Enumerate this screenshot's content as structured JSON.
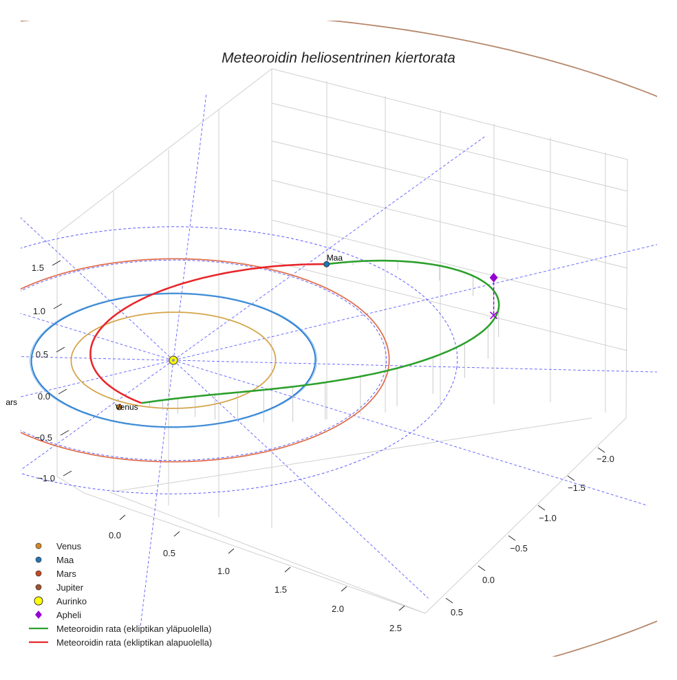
{
  "chart_data": {
    "type": "line",
    "title": "Meteoroidin heliosentrinen kiertorata",
    "x_ticks": [
      "0.0",
      "0.5",
      "1.0",
      "1.5",
      "2.0",
      "2.5"
    ],
    "y_ticks": [
      "−2.0",
      "−1.5",
      "−1.0",
      "−0.5",
      "0.0",
      "0.5"
    ],
    "z_ticks": [
      "1.5",
      "1.0",
      "0.5",
      "0.0",
      "−0.5",
      "−1.0"
    ],
    "grid": true,
    "legend_position": "bottom-left",
    "bodies": [
      {
        "name": "Venus",
        "label": "Venus",
        "orbit_radius_au": 0.72,
        "color": "#d08820",
        "orbit_color": "#d4a54a"
      },
      {
        "name": "Maa",
        "label": "Maa",
        "orbit_radius_au": 1.0,
        "color": "#1f77b4",
        "orbit_color": "#2f7fd0"
      },
      {
        "name": "Mars",
        "label": "ars",
        "orbit_radius_au": 1.52,
        "color": "#c84820",
        "orbit_color": "#e07050"
      },
      {
        "name": "Jupiter",
        "label": "",
        "orbit_radius_au": 5.2,
        "color": "#a0522d",
        "orbit_color": "#b5876a"
      }
    ],
    "sun": {
      "name": "Aurinko",
      "color": "#ffff00"
    },
    "aphelion": {
      "name": "Apheli",
      "color": "#9400d3",
      "distance_au": 2.35
    },
    "meteoroid_orbit": {
      "perihelion_au": 0.57,
      "aphelion_au": 2.35,
      "series": [
        {
          "name": "Meteoroidin rata (ekliptikan yläpuolella)",
          "color": "#2ca02c"
        },
        {
          "name": "Meteoroidin rata (ekliptikan alapuolella)",
          "color": "#e8262a"
        }
      ]
    },
    "reference_circles_au": [
      1.5,
      2.0
    ]
  },
  "legend": [
    {
      "label": "Venus",
      "marker": "dot",
      "color": "#d08820"
    },
    {
      "label": "Maa",
      "marker": "dot",
      "color": "#1f77b4"
    },
    {
      "label": "Mars",
      "marker": "dot",
      "color": "#c84820"
    },
    {
      "label": "Jupiter",
      "marker": "dot",
      "color": "#a0522d"
    },
    {
      "label": "Aurinko",
      "marker": "sun",
      "color": "#ffff00"
    },
    {
      "label": "Apheli",
      "marker": "diamond",
      "color": "#9400d3"
    },
    {
      "label": "Meteoroidin rata (ekliptikan yläpuolella)",
      "marker": "line",
      "color": "#2ca02c"
    },
    {
      "label": "Meteoroidin rata (ekliptikan alapuolella)",
      "marker": "line",
      "color": "#e8262a"
    }
  ]
}
